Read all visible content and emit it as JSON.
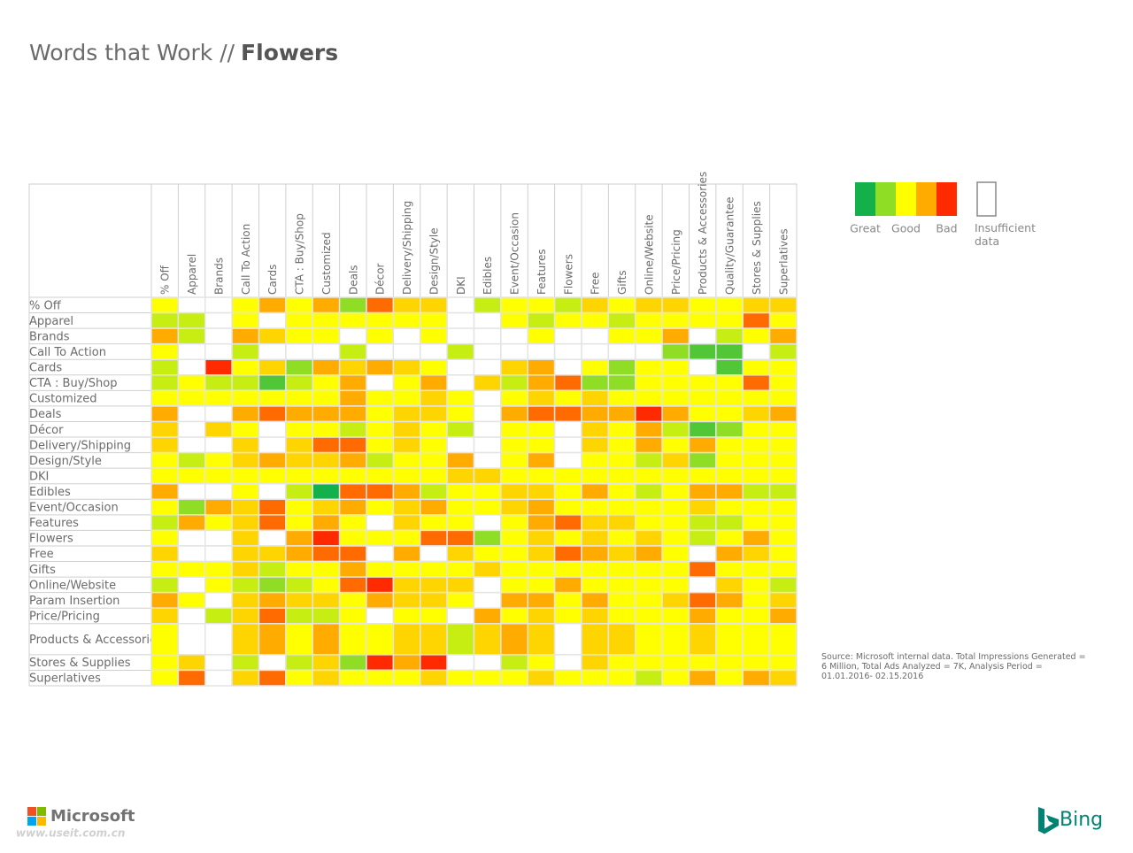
{
  "chart_data": {
    "type": "heatmap",
    "title": "Words that Work //",
    "title_emphasis": "Flowers",
    "rows": [
      "% Off",
      "Apparel",
      "Brands",
      "Call To Action",
      "Cards",
      "CTA : Buy/Shop",
      "Customized",
      "Deals",
      "Décor",
      "Delivery/Shipping",
      "Design/Style",
      "DKI",
      "Edibles",
      "Event/Occasion",
      "Features",
      "Flowers",
      "Free",
      "Gifts",
      "Online/Website",
      "Param Insertion",
      "Price/Pricing",
      "Products & Accessories",
      "Stores & Supplies",
      "Superlatives"
    ],
    "columns": [
      "% Off",
      "Apparel",
      "Brands",
      "Call To Action",
      "Cards",
      "CTA : Buy/Shop",
      "Customized",
      "Deals",
      "Décor",
      "Delivery/Shipping",
      "Design/Style",
      "DKI",
      "Edibles",
      "Event/Occasion",
      "Features",
      "Flowers",
      "Free",
      "Gifts",
      "Online/Website",
      "Price/Pricing",
      "Products & Accessories",
      "Quality/Guarantee",
      "Stores & Supplies",
      "Superlatives"
    ],
    "values": [
      [
        2,
        null,
        null,
        2,
        3,
        2,
        3,
        1,
        3.5,
        2.5,
        2.5,
        null,
        1.5,
        2,
        2,
        1.5,
        2.5,
        2,
        2.5,
        2.5,
        2,
        2,
        2.5,
        2.5
      ],
      [
        1.5,
        1.5,
        null,
        2,
        null,
        2,
        2,
        2,
        2,
        2,
        2,
        null,
        null,
        2,
        1.5,
        2,
        2,
        1.5,
        2,
        2,
        2,
        2,
        3.5,
        2
      ],
      [
        3,
        1.5,
        null,
        3,
        2.5,
        2,
        2,
        null,
        2,
        null,
        2,
        null,
        null,
        null,
        2,
        null,
        null,
        2,
        2,
        3,
        null,
        1.5,
        2,
        3
      ],
      [
        2,
        null,
        null,
        1.5,
        null,
        null,
        null,
        1.5,
        null,
        null,
        null,
        1.5,
        null,
        null,
        null,
        null,
        null,
        null,
        null,
        1,
        0.5,
        0.5,
        null,
        1.5
      ],
      [
        1.5,
        null,
        4,
        2,
        2.5,
        1,
        3,
        2.5,
        3,
        2.5,
        2,
        null,
        null,
        2.5,
        3,
        null,
        2,
        1,
        2,
        2,
        null,
        0.5,
        2,
        2
      ],
      [
        1.5,
        2,
        1.5,
        1.5,
        0.5,
        1.5,
        2,
        3,
        null,
        2,
        3,
        null,
        2.5,
        1.5,
        3,
        3.5,
        1,
        1,
        2,
        2,
        2,
        2,
        3.5,
        2
      ],
      [
        2,
        2,
        2,
        2,
        2,
        2,
        2,
        3,
        2,
        2,
        2.5,
        2,
        null,
        2,
        2.5,
        2,
        2.5,
        2,
        2,
        2,
        2,
        2,
        2,
        2
      ],
      [
        3,
        null,
        null,
        3,
        3.5,
        3,
        3,
        3,
        2,
        2.5,
        2.5,
        2,
        null,
        3,
        3.5,
        3.5,
        3,
        3,
        4,
        3,
        2,
        2,
        2.5,
        3
      ],
      [
        2.5,
        null,
        2.5,
        2,
        null,
        2,
        2,
        1.5,
        2,
        2.5,
        2,
        1.5,
        null,
        2,
        2,
        null,
        2.5,
        2,
        3,
        1.5,
        0.5,
        1,
        2,
        2
      ],
      [
        2.5,
        null,
        null,
        2.5,
        null,
        2.5,
        3.5,
        3.5,
        2,
        2.5,
        2,
        null,
        null,
        2,
        2,
        null,
        2.5,
        2,
        3,
        2,
        3,
        2,
        2,
        2
      ],
      [
        2,
        1.5,
        2,
        2.5,
        3,
        2.5,
        2.5,
        3,
        1.5,
        2,
        2,
        3,
        null,
        2,
        3,
        null,
        2,
        2,
        1.5,
        2.5,
        1,
        2,
        2,
        2
      ],
      [
        2,
        2,
        2,
        2,
        2,
        2,
        2,
        2,
        2,
        2,
        2,
        2.5,
        2.5,
        2,
        2,
        2,
        2,
        2,
        2,
        2,
        2,
        2,
        2,
        2
      ],
      [
        3,
        null,
        null,
        2,
        null,
        1.5,
        0,
        3.5,
        3.5,
        3,
        1.5,
        2,
        2,
        2.5,
        2.5,
        2,
        3,
        2,
        1.5,
        2,
        3,
        3,
        1.5,
        1.5
      ],
      [
        2,
        1,
        3,
        2.5,
        3.5,
        2,
        2.5,
        3,
        2,
        2.5,
        3,
        2,
        2,
        2.5,
        3,
        2,
        2,
        2,
        2,
        2,
        2.5,
        2,
        2,
        2
      ],
      [
        1.5,
        3,
        2,
        2.5,
        3.5,
        2,
        3,
        2,
        null,
        2.5,
        2,
        2,
        null,
        2,
        3,
        3.5,
        2.5,
        2.5,
        2,
        2,
        1.5,
        1.5,
        2,
        2
      ],
      [
        2,
        null,
        null,
        2.5,
        null,
        3,
        4,
        2,
        2,
        2,
        3.5,
        3.5,
        1,
        2,
        2.5,
        2,
        2.5,
        2,
        2.5,
        2,
        1.5,
        2,
        3,
        2
      ],
      [
        2.5,
        null,
        null,
        2.5,
        2.5,
        3,
        3.5,
        3.5,
        null,
        3,
        null,
        2.5,
        2,
        2,
        2.5,
        3.5,
        3,
        2.5,
        3,
        2,
        null,
        3,
        2.5,
        2
      ],
      [
        2,
        2,
        2,
        2.5,
        1.5,
        2,
        2,
        3,
        2,
        2,
        2,
        2,
        2.5,
        2,
        2,
        2,
        2,
        2,
        2,
        2,
        3.5,
        2,
        2,
        2
      ],
      [
        1.5,
        null,
        2,
        1.5,
        1,
        1.5,
        2,
        3.5,
        4,
        2.5,
        2.5,
        2.5,
        null,
        2,
        2,
        3,
        2,
        2,
        2,
        2,
        null,
        2.5,
        2,
        1.5
      ],
      [
        3,
        2,
        null,
        2.5,
        3,
        2.5,
        2.5,
        2,
        3,
        2.5,
        2.5,
        2,
        null,
        3,
        3,
        2,
        3,
        2,
        2,
        2.5,
        3.5,
        3,
        2,
        2.5
      ],
      [
        2.5,
        null,
        1.5,
        2.5,
        3.5,
        1.5,
        1.5,
        2,
        null,
        2,
        2,
        null,
        3,
        2,
        2.5,
        2,
        2.5,
        2,
        2,
        2,
        3,
        2,
        2,
        3
      ],
      [
        2,
        null,
        null,
        2.5,
        3,
        2,
        3,
        2,
        2,
        2.5,
        2.5,
        1.5,
        2.5,
        3,
        2.5,
        null,
        2.5,
        2.5,
        2,
        2,
        2.5,
        2,
        2,
        2
      ],
      [
        2,
        2.5,
        null,
        1.5,
        null,
        1.5,
        2.5,
        1,
        4,
        3,
        4,
        null,
        null,
        1.5,
        2,
        null,
        2.5,
        2,
        2,
        2,
        2,
        2,
        2,
        2
      ],
      [
        2,
        3.5,
        null,
        2.5,
        3.5,
        2,
        2.5,
        2,
        2,
        2,
        2.5,
        2,
        2,
        2,
        2.5,
        2,
        2,
        2,
        1.5,
        2,
        3,
        2,
        3,
        2.5
      ]
    ],
    "zlim": [
      0,
      4
    ],
    "colors": [
      "#13b04b",
      "#8fdd25",
      "#ffff00",
      "#ffab00",
      "#ff2a00"
    ],
    "scale_labels": [
      {
        "value": 0,
        "label": "Great"
      },
      {
        "value": 2,
        "label": "Good"
      },
      {
        "value": 4,
        "label": "Bad"
      }
    ],
    "insufficient_label": "Insufficient data",
    "source": "Source: Microsoft internal data. Total Impressions Generated = 6 Million, Total Ads Analyzed = 7K, Analysis Period = 01.01.2016- 02.15.2016"
  },
  "footer": {
    "left_logo": "Microsoft",
    "watermark": "www.useit.com.cn",
    "right_logo": "Bing"
  }
}
